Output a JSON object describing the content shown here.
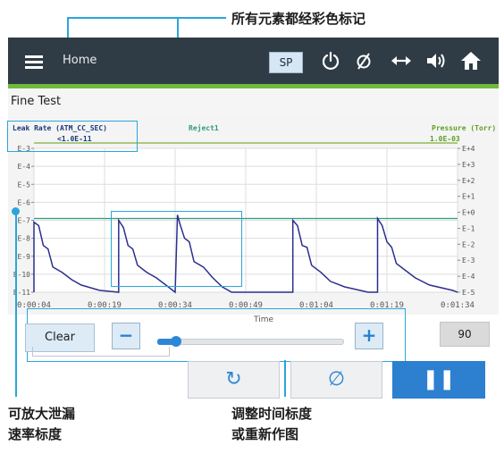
{
  "annotations": {
    "top": "所有元素都经彩色标记",
    "bottom_left_line1": "可放大泄漏",
    "bottom_left_line2": "速率标度",
    "bottom_center_line1": "调整时间标度",
    "bottom_center_line2": "或重新作图"
  },
  "header": {
    "nav_label": "Home",
    "sp_label": "SP",
    "icons": [
      "menu-icon",
      "power-icon",
      "empty-set-icon",
      "horizontal-arrows-icon",
      "speaker-icon",
      "home-icon"
    ]
  },
  "page": {
    "title": "Fine Test"
  },
  "chart_labels": {
    "left_series": "Leak Rate (ATM_CC_SEC)",
    "left_bound": "<1.0E-11",
    "reject": "Reject1",
    "right_series": "Pressure (Torr)",
    "right_bound": "1.0E-03",
    "x_title": "Time"
  },
  "chart_data": {
    "type": "line",
    "x_ticks": [
      "0:00:04",
      "0:00:19",
      "0:00:34",
      "0:00:49",
      "0:01:04",
      "0:01:19",
      "0:01:34"
    ],
    "y_left_ticks": [
      "E-3",
      "E-4",
      "E-5",
      "E-6",
      "E-7",
      "E-8",
      "E-9",
      "E-10",
      "E-11"
    ],
    "y_right_ticks": [
      "E+4",
      "E+3",
      "E+2",
      "E+1",
      "E+0",
      "E-1",
      "E-2",
      "E-3",
      "E-4",
      "E-5"
    ],
    "y_left_log_range": [
      -11,
      -3
    ],
    "reject_level_exp": -6.9,
    "pressure_level_exp": -2.7,
    "grid": true,
    "colors": {
      "leak": "#2b2f8f",
      "reject": "#2e9b7a",
      "pressure": "#7faf3a"
    },
    "series": [
      {
        "name": "Leak Rate (ATM_CC_SEC)",
        "x": [
          0,
          0,
          1,
          2,
          3,
          4,
          6,
          8,
          10,
          14,
          18,
          18,
          19,
          20,
          21,
          22,
          24,
          26,
          28,
          30,
          30.5,
          31,
          32,
          33,
          34,
          36,
          38,
          40,
          42,
          55,
          55,
          56,
          57,
          58,
          59,
          61,
          63,
          66,
          71,
          73,
          73,
          74,
          75,
          76,
          77,
          79,
          81,
          84,
          89,
          90
        ],
        "y": [
          -11,
          -7.1,
          -7.3,
          -8.4,
          -8.6,
          -9.6,
          -9.9,
          -10.3,
          -10.6,
          -10.9,
          -11,
          -7.0,
          -7.4,
          -8.4,
          -8.6,
          -9.5,
          -9.9,
          -10.2,
          -10.6,
          -11,
          -6.7,
          -7.2,
          -8.0,
          -8.2,
          -9.3,
          -9.6,
          -10.2,
          -10.7,
          -11,
          -11,
          -7.0,
          -7.3,
          -8.4,
          -8.5,
          -9.5,
          -9.9,
          -10.4,
          -10.7,
          -11,
          -11,
          -6.9,
          -7.3,
          -8.2,
          -8.5,
          -9.4,
          -9.8,
          -10.2,
          -10.6,
          -10.9,
          -11
        ]
      }
    ]
  },
  "controls": {
    "clear_label": "Clear",
    "minus_label": "−",
    "plus_label": "+",
    "slider_value": 0.1,
    "value_display": "90",
    "refresh_label": "↻",
    "empty_set_label": "∅",
    "pause_label": "❚❚"
  }
}
